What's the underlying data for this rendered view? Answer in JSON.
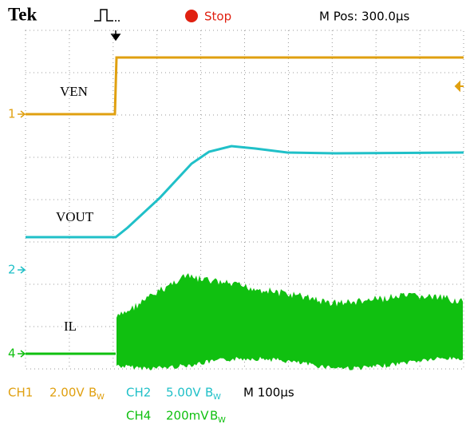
{
  "header": {
    "brand": "Tek",
    "status": "Stop",
    "position": "M Pos: 300.0µs"
  },
  "labels": [
    "VEN",
    "VOUT",
    "IL"
  ],
  "markers": [
    "1",
    "2",
    "4"
  ],
  "footer": {
    "channels": [
      {
        "channel": "CH1",
        "scale": "2.00V",
        "bw": "B",
        "bw_sub": "W"
      },
      {
        "channel": "CH2",
        "scale": "5.00V",
        "bw": "B",
        "bw_sub": "W"
      },
      {
        "channel": "CH4",
        "scale": "200mV",
        "bw": "B",
        "bw_sub": "W"
      }
    ],
    "timebase": "M 100µs"
  }
}
